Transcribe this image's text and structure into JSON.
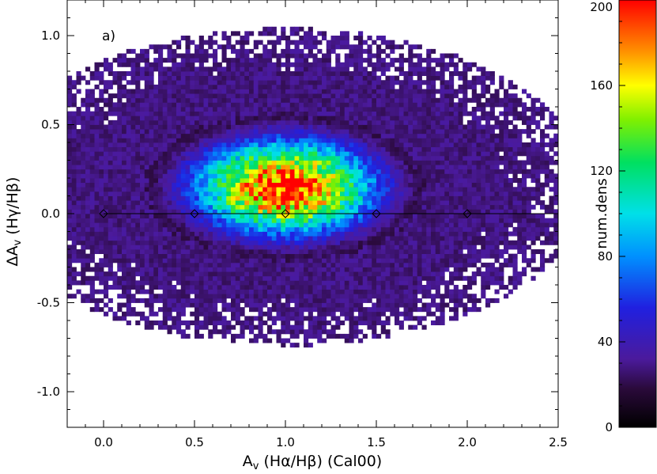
{
  "chart_data": [
    {
      "type": "heatmap",
      "panel_label": "a)",
      "xlabel": "A_v (Hα/Hβ) (Cal00)",
      "ylabel": "ΔA_v (Hγ/Hβ)",
      "xlim": [
        -0.2,
        2.5
      ],
      "ylim": [
        -1.2,
        1.2
      ],
      "x_ticks": [
        "0.0",
        "0.5",
        "1.0",
        "1.5",
        "2.0",
        "2.5"
      ],
      "y_ticks": [
        "-1.0",
        "-0.5",
        "0.0",
        "0.5",
        "1.0"
      ],
      "colorscale": "rainbow (black → purple → blue → cyan → green → yellow → orange → red)",
      "density_peak": {
        "x": 1.0,
        "y": 0.15,
        "value": 200
      },
      "density_core_extent": {
        "x": [
          0.15,
          1.85
        ],
        "y": [
          -0.35,
          0.55
        ]
      },
      "density_full_extent": {
        "x": [
          -0.2,
          2.5
        ],
        "y": [
          -1.0,
          1.2
        ]
      },
      "reference_line": {
        "y": 0.0,
        "x": [
          0.0,
          2.5
        ]
      },
      "reference_markers": {
        "x": [
          0.0,
          0.5,
          1.0,
          1.5,
          2.0
        ],
        "y": [
          0.0,
          0.0,
          0.0,
          0.0,
          0.0
        ],
        "shape": "diamond"
      }
    },
    {
      "type": "colorbar",
      "label": "num.dens",
      "range": [
        0,
        200
      ],
      "ticks": [
        "0",
        "40",
        "80",
        "120",
        "160",
        "200"
      ],
      "tick_values": [
        0,
        40,
        80,
        120,
        160,
        200
      ]
    }
  ]
}
